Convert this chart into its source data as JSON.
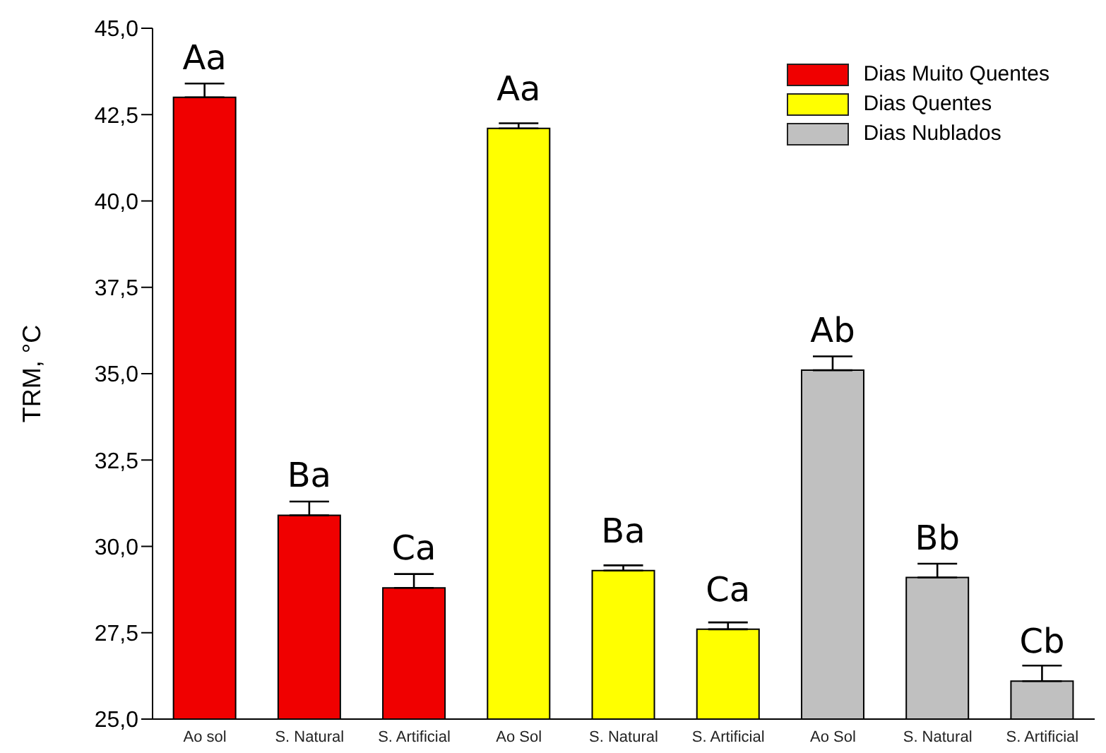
{
  "chart_data": {
    "type": "bar",
    "stacked": true,
    "ylabel": "TRM, °C",
    "categories": [
      "Ao sol",
      "S. Natural",
      "S. Artificial",
      "Ao Sol",
      "S. Natural",
      "S. Artificial",
      "Ao Sol",
      "S. Natural",
      "S. Artificial"
    ],
    "series": [
      {
        "name": "Dias Muito Quentes",
        "color": "#f00000",
        "values": [
          43.0,
          30.9,
          28.8,
          null,
          null,
          null,
          null,
          null,
          null
        ],
        "errors": [
          [
            43.0,
            43.4
          ],
          [
            30.9,
            31.3
          ],
          [
            28.8,
            29.2
          ],
          null,
          null,
          null,
          null,
          null,
          null
        ],
        "value_labels": [
          "Aa",
          "Ba",
          "Ca",
          null,
          null,
          null,
          null,
          null,
          null
        ]
      },
      {
        "name": "Dias Quentes",
        "color": "#ffff00",
        "values": [
          null,
          null,
          null,
          42.1,
          29.3,
          27.6,
          null,
          null,
          null
        ],
        "errors": [
          null,
          null,
          null,
          [
            42.1,
            42.25
          ],
          [
            29.3,
            29.45
          ],
          [
            27.6,
            27.8
          ],
          null,
          null,
          null
        ],
        "value_labels": [
          null,
          null,
          null,
          "Aa",
          "Ba",
          "Ca",
          null,
          null,
          null
        ]
      },
      {
        "name": "Dias Nublados",
        "color": "#c0c0c0",
        "values": [
          null,
          null,
          null,
          null,
          null,
          null,
          35.1,
          29.1,
          26.1
        ],
        "errors": [
          null,
          null,
          null,
          null,
          null,
          null,
          [
            35.1,
            35.5
          ],
          [
            29.1,
            29.5
          ],
          [
            26.1,
            26.55
          ]
        ],
        "value_labels": [
          null,
          null,
          null,
          null,
          null,
          null,
          "Ab",
          "Bb",
          "Cb"
        ]
      }
    ],
    "ylim": [
      25,
      45
    ],
    "yticks": [
      {
        "value": 25,
        "label": "25,0"
      },
      {
        "value": 27.5,
        "label": "27,5"
      },
      {
        "value": 30,
        "label": "30,0"
      },
      {
        "value": 32.5,
        "label": "32,5"
      },
      {
        "value": 35,
        "label": "35,0"
      },
      {
        "value": 37.5,
        "label": "37,5"
      },
      {
        "value": 40,
        "label": "40,0"
      },
      {
        "value": 42.5,
        "label": "42,5"
      },
      {
        "value": 45,
        "label": "45,0"
      }
    ],
    "legend": "top right",
    "grid": false
  }
}
